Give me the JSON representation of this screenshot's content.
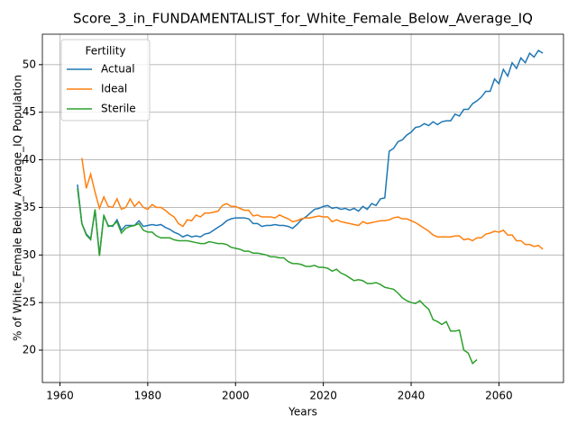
{
  "chart_data": {
    "type": "line",
    "title": "Score_3_in_FUNDAMENTALIST_for_White_Female_Below_Average_IQ",
    "xlabel": "Years",
    "ylabel": "% of White_Female Below_Average_IQ Population",
    "legend_title": "Fertility",
    "legend": "upper left",
    "grid": true,
    "xlim": [
      1956,
      2074.7
    ],
    "ylim": [
      16.6,
      53.2
    ],
    "xticks": [
      1960,
      1980,
      2000,
      2020,
      2040,
      2060
    ],
    "yticks": [
      20,
      25,
      30,
      35,
      40,
      45,
      50
    ],
    "x": [
      1964,
      1965,
      1966,
      1967,
      1968,
      1969,
      1970,
      1971,
      1972,
      1973,
      1974,
      1975,
      1976,
      1977,
      1978,
      1979,
      1980,
      1981,
      1982,
      1983,
      1984,
      1985,
      1986,
      1987,
      1988,
      1989,
      1990,
      1991,
      1992,
      1993,
      1994,
      1995,
      1996,
      1997,
      1998,
      1999,
      2000,
      2001,
      2002,
      2003,
      2004,
      2005,
      2006,
      2007,
      2008,
      2009,
      2010,
      2011,
      2012,
      2013,
      2014,
      2015,
      2016,
      2017,
      2018,
      2019,
      2020,
      2021,
      2022,
      2023,
      2024,
      2025,
      2026,
      2027,
      2028,
      2029,
      2030,
      2031,
      2032,
      2033,
      2034,
      2035,
      2036,
      2037,
      2038,
      2039,
      2040,
      2041,
      2042,
      2043,
      2044,
      2045,
      2046,
      2047,
      2048,
      2049,
      2050,
      2051,
      2052,
      2053,
      2054,
      2055,
      2056,
      2057,
      2058,
      2059,
      2060,
      2061,
      2062,
      2063,
      2064,
      2065,
      2066,
      2067,
      2068,
      2069,
      2070
    ],
    "series": [
      {
        "name": "Actual",
        "color": "#1f77b4",
        "values": [
          37.4,
          33.3,
          32.2,
          31.7,
          34.7,
          30.0,
          34.1,
          33.1,
          33.0,
          33.7,
          32.6,
          33.1,
          33.1,
          33.1,
          33.6,
          33.0,
          33.1,
          33.2,
          33.1,
          33.2,
          32.9,
          32.7,
          32.4,
          32.2,
          31.9,
          32.1,
          31.9,
          32.0,
          31.9,
          32.2,
          32.3,
          32.6,
          32.9,
          33.2,
          33.6,
          33.8,
          33.9,
          33.9,
          33.9,
          33.8,
          33.3,
          33.3,
          33.0,
          33.1,
          33.1,
          33.2,
          33.1,
          33.1,
          33.0,
          32.8,
          33.2,
          33.7,
          34.0,
          34.4,
          34.8,
          34.9,
          35.1,
          35.2,
          34.9,
          35.0,
          34.8,
          34.9,
          34.7,
          34.9,
          34.6,
          35.1,
          34.8,
          35.4,
          35.2,
          35.9,
          36.0,
          40.9,
          41.2,
          41.9,
          42.1,
          42.6,
          42.9,
          43.4,
          43.5,
          43.8,
          43.6,
          44.0,
          43.7,
          44.0,
          44.1,
          44.1,
          44.8,
          44.6,
          45.3,
          45.3,
          45.9,
          46.2,
          46.6,
          47.2,
          47.2,
          48.5,
          48.0,
          49.5,
          48.8,
          50.2,
          49.6,
          50.7,
          50.2,
          51.2,
          50.8,
          51.5,
          51.2
        ]
      },
      {
        "name": "Ideal",
        "color": "#ff7f0e",
        "values": [
          null,
          40.2,
          37.0,
          38.5,
          36.6,
          34.9,
          36.1,
          35.1,
          35.0,
          35.9,
          34.8,
          35.0,
          35.9,
          35.1,
          35.6,
          35.0,
          34.8,
          35.3,
          35.0,
          35.0,
          34.7,
          34.3,
          34.0,
          33.3,
          33.0,
          33.7,
          33.6,
          34.2,
          34.0,
          34.4,
          34.4,
          34.5,
          34.6,
          35.2,
          35.4,
          35.1,
          35.1,
          34.9,
          34.7,
          34.7,
          34.1,
          34.2,
          34.0,
          34.0,
          34.0,
          33.9,
          34.2,
          34.0,
          33.8,
          33.5,
          33.6,
          33.8,
          33.9,
          33.9,
          34.0,
          34.1,
          34.0,
          34.0,
          33.5,
          33.7,
          33.5,
          33.4,
          33.3,
          33.2,
          33.1,
          33.5,
          33.3,
          33.4,
          33.5,
          33.6,
          33.6,
          33.7,
          33.9,
          34.0,
          33.8,
          33.8,
          33.6,
          33.4,
          33.1,
          32.8,
          32.5,
          32.1,
          31.9,
          31.9,
          31.9,
          31.9,
          32.0,
          32.0,
          31.6,
          31.7,
          31.5,
          31.8,
          31.8,
          32.2,
          32.3,
          32.5,
          32.4,
          32.6,
          32.1,
          32.1,
          31.5,
          31.5,
          31.1,
          31.1,
          30.9,
          31.0,
          30.6
        ]
      },
      {
        "name": "Sterile",
        "color": "#2ca02c",
        "values": [
          37.0,
          33.3,
          32.1,
          31.6,
          34.8,
          29.9,
          34.2,
          33.0,
          33.1,
          33.5,
          32.3,
          32.8,
          33.0,
          33.1,
          33.3,
          32.6,
          32.4,
          32.4,
          32.0,
          31.8,
          31.8,
          31.8,
          31.6,
          31.5,
          31.5,
          31.5,
          31.4,
          31.3,
          31.2,
          31.2,
          31.4,
          31.3,
          31.2,
          31.2,
          31.1,
          30.8,
          30.7,
          30.6,
          30.4,
          30.4,
          30.2,
          30.2,
          30.1,
          30.0,
          29.8,
          29.8,
          29.7,
          29.7,
          29.3,
          29.1,
          29.1,
          29.0,
          28.8,
          28.8,
          28.9,
          28.7,
          28.7,
          28.6,
          28.3,
          28.5,
          28.1,
          27.9,
          27.6,
          27.3,
          27.4,
          27.3,
          27.0,
          27.0,
          27.1,
          26.9,
          26.6,
          26.5,
          26.4,
          26.0,
          25.5,
          25.2,
          25.0,
          24.9,
          25.2,
          24.7,
          24.3,
          23.2,
          23.0,
          22.7,
          23.0,
          22.0,
          22.0,
          22.1,
          20.0,
          19.7,
          18.6,
          19.0,
          null,
          null,
          null,
          null,
          null,
          null,
          null,
          null,
          null,
          null,
          null,
          null,
          null,
          null,
          null
        ]
      }
    ]
  }
}
